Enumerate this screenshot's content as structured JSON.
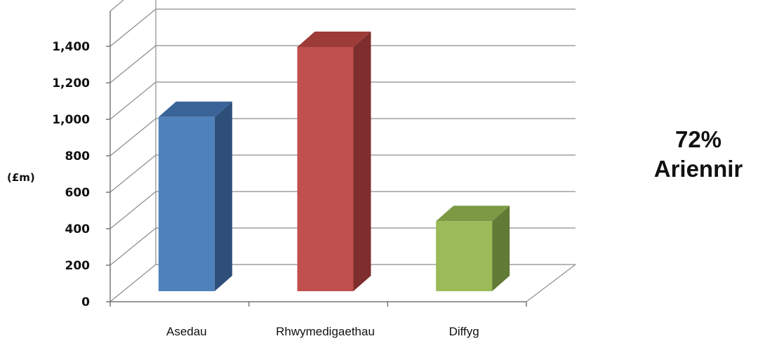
{
  "chart_data": {
    "type": "bar",
    "categories": [
      "Asedau",
      "Rhwymedigaethau",
      "Diffyg"
    ],
    "values": [
      970,
      1360,
      390
    ],
    "ylabel": "(£m)",
    "ylim": [
      0,
      1400
    ],
    "ytick_values": [
      0,
      200,
      400,
      600,
      800,
      1000,
      1200,
      1400
    ],
    "ytick_labels": [
      "0",
      "200",
      "400",
      "600",
      "800",
      "1,000",
      "1,200",
      "1,400"
    ],
    "colors": {
      "Asedau": {
        "front": "#4F81BD",
        "side": "#2E4F7A",
        "top": "#3A6498"
      },
      "Rhwymedigaethau": {
        "front": "#C0504D",
        "side": "#7E2E2C",
        "top": "#9C3B38"
      },
      "Diffyg": {
        "front": "#9BBB59",
        "side": "#617A35",
        "top": "#7C9A44"
      }
    },
    "grid": true,
    "three_d": true
  },
  "annotation": {
    "percent": "72%",
    "text": "Ariennir"
  }
}
